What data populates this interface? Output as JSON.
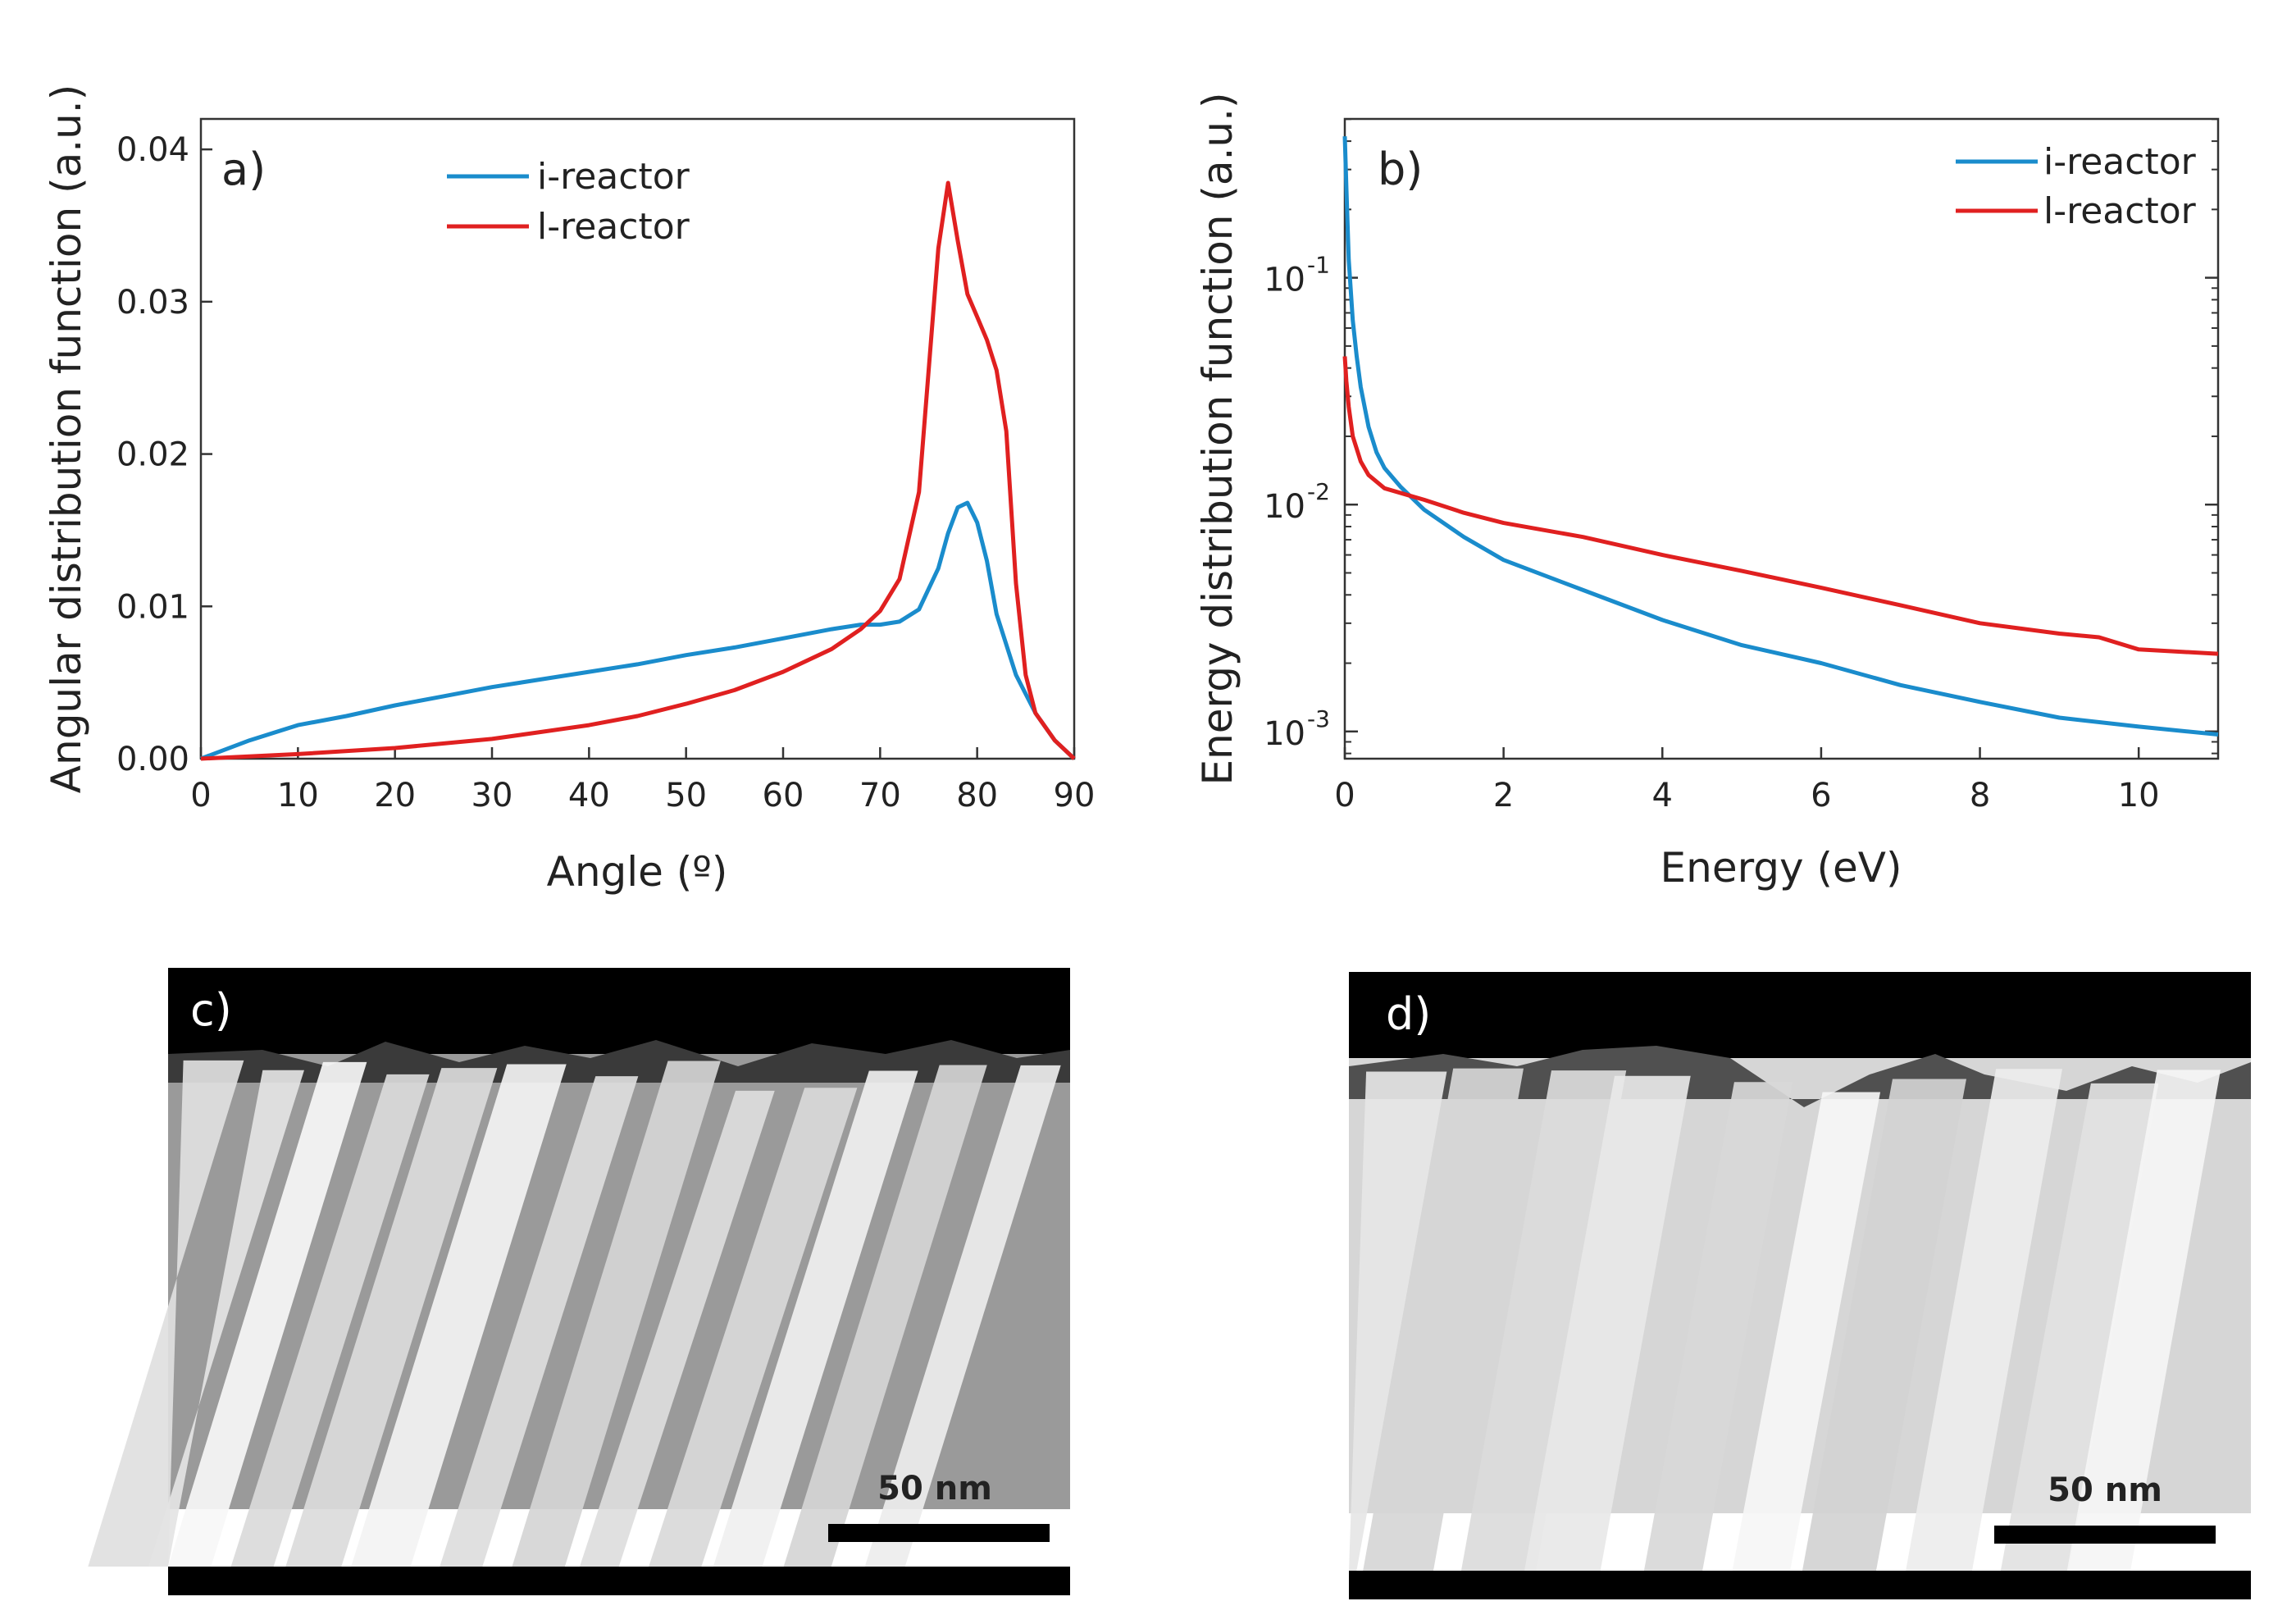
{
  "colors": {
    "i_reactor": "#1a8ccc",
    "l_reactor": "#e02020",
    "axis": "#333333"
  },
  "panels": {
    "c": {
      "label": "c)",
      "scale_bar": "50 nm"
    },
    "d": {
      "label": "d)",
      "scale_bar": "50 nm"
    }
  },
  "chart_data": [
    {
      "id": "a",
      "type": "line",
      "panel_label": "a)",
      "xlabel": "Angle (º)",
      "ylabel": "Angular distribution function (a.u.)",
      "xlim": [
        0,
        90
      ],
      "ylim": [
        0,
        0.042
      ],
      "xticks": [
        0,
        10,
        20,
        30,
        40,
        50,
        60,
        70,
        80,
        90
      ],
      "xtick_labels": [
        "0",
        "10",
        "20",
        "30",
        "40",
        "50",
        "60",
        "70",
        "80",
        "90"
      ],
      "yticks": [
        0,
        0.01,
        0.02,
        0.03,
        0.04
      ],
      "ytick_labels": [
        "0.00",
        "0.01",
        "0.02",
        "0.03",
        "0.04"
      ],
      "legend": "top-center",
      "series": [
        {
          "name": "i-reactor",
          "color": "#1a8ccc",
          "x": [
            0,
            5,
            10,
            15,
            20,
            25,
            30,
            35,
            40,
            45,
            50,
            55,
            60,
            65,
            68,
            70,
            72,
            74,
            76,
            77,
            78,
            79,
            80,
            81,
            82,
            84,
            86,
            88,
            90
          ],
          "y": [
            0,
            0.0012,
            0.0022,
            0.0028,
            0.0035,
            0.0041,
            0.0047,
            0.0052,
            0.0057,
            0.0062,
            0.0068,
            0.0073,
            0.0079,
            0.0085,
            0.0088,
            0.0088,
            0.009,
            0.0098,
            0.0125,
            0.0148,
            0.0165,
            0.0168,
            0.0155,
            0.013,
            0.0095,
            0.0055,
            0.003,
            0.0012,
            0
          ]
        },
        {
          "name": "l-reactor",
          "color": "#e02020",
          "x": [
            0,
            10,
            20,
            30,
            40,
            45,
            50,
            55,
            60,
            65,
            68,
            70,
            72,
            74,
            75,
            76,
            77,
            78,
            79,
            80,
            81,
            82,
            83,
            84,
            85,
            86,
            88,
            90
          ],
          "y": [
            0,
            0.0003,
            0.0007,
            0.0013,
            0.0022,
            0.0028,
            0.0036,
            0.0045,
            0.0057,
            0.0072,
            0.0085,
            0.0097,
            0.0118,
            0.0175,
            0.0255,
            0.0335,
            0.0378,
            0.034,
            0.0305,
            0.029,
            0.0275,
            0.0255,
            0.0215,
            0.0115,
            0.0055,
            0.003,
            0.0012,
            0
          ]
        }
      ]
    },
    {
      "id": "b",
      "type": "line",
      "panel_label": "b)",
      "xlabel": "Energy (eV)",
      "ylabel": "Energy distribution function (a.u.)",
      "xlim": [
        0,
        11
      ],
      "ylim_log10": [
        -3.12,
        -0.3
      ],
      "yscale": "log",
      "xticks": [
        0,
        2,
        4,
        6,
        8,
        10
      ],
      "xtick_labels": [
        "0",
        "2",
        "4",
        "6",
        "8",
        "10"
      ],
      "yticks": [
        0.001,
        0.01,
        0.1
      ],
      "ytick_labels": [
        "10",
        "10",
        "10"
      ],
      "ytick_exponents": [
        "-3",
        "-2",
        "-1"
      ],
      "legend": "top-right",
      "series": [
        {
          "name": "i-reactor",
          "color": "#1a8ccc",
          "x": [
            0,
            0.02,
            0.05,
            0.1,
            0.15,
            0.2,
            0.3,
            0.4,
            0.5,
            0.7,
            1.0,
            1.5,
            2,
            3,
            4,
            5,
            6,
            7,
            8,
            9,
            10,
            11
          ],
          "y": [
            0.42,
            0.25,
            0.12,
            0.065,
            0.045,
            0.033,
            0.022,
            0.017,
            0.0145,
            0.012,
            0.0095,
            0.0072,
            0.0057,
            0.0042,
            0.0031,
            0.0024,
            0.002,
            0.0016,
            0.00135,
            0.00115,
            0.00105,
            0.00097
          ]
        },
        {
          "name": "l-reactor",
          "color": "#e02020",
          "x": [
            0,
            0.02,
            0.05,
            0.1,
            0.2,
            0.3,
            0.5,
            0.8,
            1.0,
            1.5,
            2,
            3,
            4,
            5,
            6,
            7,
            8,
            9,
            9.5,
            10,
            11
          ],
          "y": [
            0.045,
            0.035,
            0.027,
            0.02,
            0.0155,
            0.0135,
            0.0118,
            0.011,
            0.0105,
            0.0092,
            0.0083,
            0.0072,
            0.006,
            0.0051,
            0.0043,
            0.0036,
            0.003,
            0.0027,
            0.0026,
            0.0023,
            0.0022
          ]
        }
      ]
    }
  ]
}
